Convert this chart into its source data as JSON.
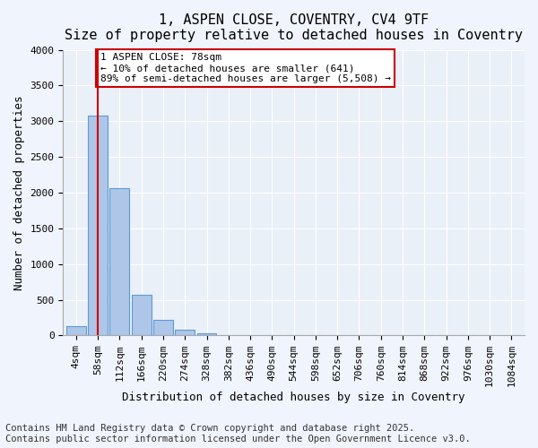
{
  "title": "1, ASPEN CLOSE, COVENTRY, CV4 9TF",
  "subtitle": "Size of property relative to detached houses in Coventry",
  "xlabel": "Distribution of detached houses by size in Coventry",
  "ylabel": "Number of detached properties",
  "bar_color": "#aec6e8",
  "bar_edge_color": "#5b9bd5",
  "bg_color": "#eaf0f8",
  "grid_color": "#ffffff",
  "vline_color": "#cc0000",
  "vline_x": 1,
  "annotation_text": "1 ASPEN CLOSE: 78sqm\n← 10% of detached houses are smaller (641)\n89% of semi-detached houses are larger (5,508) →",
  "annotation_box_color": "#cc0000",
  "bins": [
    "4sqm",
    "58sqm",
    "112sqm",
    "166sqm",
    "220sqm",
    "274sqm",
    "328sqm",
    "382sqm",
    "436sqm",
    "490sqm",
    "544sqm",
    "598sqm",
    "652sqm",
    "706sqm",
    "760sqm",
    "814sqm",
    "868sqm",
    "922sqm",
    "976sqm",
    "1030sqm",
    "1084sqm"
  ],
  "values": [
    130,
    3080,
    2060,
    570,
    220,
    80,
    30,
    10,
    5,
    0,
    0,
    0,
    0,
    0,
    0,
    0,
    0,
    0,
    0,
    0,
    0
  ],
  "ylim": [
    0,
    4000
  ],
  "yticks": [
    0,
    500,
    1000,
    1500,
    2000,
    2500,
    3000,
    3500,
    4000
  ],
  "footer": "Contains HM Land Registry data © Crown copyright and database right 2025.\nContains public sector information licensed under the Open Government Licence v3.0.",
  "footer_fontsize": 7.5,
  "title_fontsize": 11,
  "subtitle_fontsize": 10,
  "axis_fontsize": 9,
  "tick_fontsize": 8
}
